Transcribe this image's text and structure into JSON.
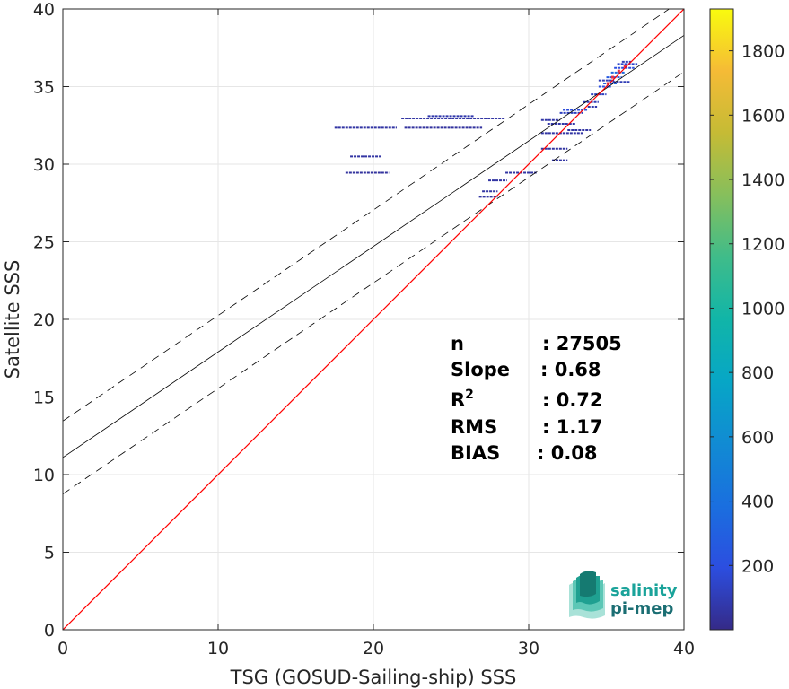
{
  "chart_data": {
    "type": "scatter",
    "subtype": "density-scatter",
    "xlabel": "TSG (GOSUD-Sailing-ship) SSS",
    "ylabel": "Satellite SSS",
    "xlim": [
      0,
      40
    ],
    "ylim": [
      0,
      40
    ],
    "xticks": [
      "0",
      "10",
      "20",
      "30",
      "40"
    ],
    "yticks": [
      "0",
      "5",
      "10",
      "15",
      "20",
      "25",
      "30",
      "35",
      "40"
    ],
    "grid": true,
    "colorbar": {
      "range": [
        0,
        1930
      ],
      "ticks": [
        "200",
        "400",
        "600",
        "800",
        "1000",
        "1200",
        "1400",
        "1600",
        "1800"
      ],
      "colormap": "parula"
    },
    "lines": {
      "identity": {
        "slope": 1,
        "intercept": 0,
        "color": "#ff0000"
      },
      "fit": {
        "slope": 0.68,
        "intercept": 11.1,
        "color": "#000000"
      },
      "fit_upper": {
        "slope": 0.68,
        "intercept": 13.45,
        "color": "#000000",
        "dash": true
      },
      "fit_lower": {
        "slope": 0.68,
        "intercept": 8.75,
        "color": "#000000",
        "dash": true
      }
    },
    "stats": [
      {
        "label": "n",
        "value": ": 27505"
      },
      {
        "label": "Slope",
        "value": ": 0.68"
      },
      {
        "label": "R",
        "sup": "2",
        "value": ": 0.72"
      },
      {
        "label": "RMS",
        "value": ": 1.17"
      },
      {
        "label": "BIAS",
        "value": ": 0.08"
      }
    ],
    "segments": [
      {
        "x0": 17.5,
        "x1": 21.5,
        "y": 32.35,
        "density": 60
      },
      {
        "x0": 22.0,
        "x1": 27.0,
        "y": 32.35,
        "density": 50
      },
      {
        "x0": 21.8,
        "x1": 28.5,
        "y": 32.95,
        "density": 60
      },
      {
        "x0": 23.5,
        "x1": 26.5,
        "y": 33.1,
        "density": 80
      },
      {
        "x0": 18.5,
        "x1": 20.5,
        "y": 30.5,
        "density": 60
      },
      {
        "x0": 18.2,
        "x1": 21.0,
        "y": 29.45,
        "density": 50
      },
      {
        "x0": 26.8,
        "x1": 28.0,
        "y": 27.9,
        "density": 60
      },
      {
        "x0": 27.0,
        "x1": 28.0,
        "y": 28.25,
        "density": 60
      },
      {
        "x0": 27.4,
        "x1": 28.6,
        "y": 28.95,
        "density": 60
      },
      {
        "x0": 28.5,
        "x1": 30.5,
        "y": 29.45,
        "density": 60
      },
      {
        "x0": 30.8,
        "x1": 32.5,
        "y": 31.0,
        "density": 60
      },
      {
        "x0": 31.5,
        "x1": 32.5,
        "y": 30.25,
        "density": 60
      },
      {
        "x0": 30.8,
        "x1": 33.5,
        "y": 32.0,
        "density": 60
      },
      {
        "x0": 32.5,
        "x1": 34.0,
        "y": 32.2,
        "density": 60
      },
      {
        "x0": 30.8,
        "x1": 32.0,
        "y": 32.85,
        "density": 70
      },
      {
        "x0": 31.2,
        "x1": 33.0,
        "y": 32.6,
        "density": 70
      },
      {
        "x0": 32.0,
        "x1": 33.5,
        "y": 33.3,
        "density": 120
      },
      {
        "x0": 32.2,
        "x1": 33.8,
        "y": 33.5,
        "density": 180
      },
      {
        "x0": 33.5,
        "x1": 34.5,
        "y": 34.0,
        "density": 100
      },
      {
        "x0": 34.0,
        "x1": 35.0,
        "y": 34.5,
        "density": 120
      },
      {
        "x0": 34.5,
        "x1": 35.3,
        "y": 35.0,
        "density": 200
      },
      {
        "x0": 35.0,
        "x1": 36.0,
        "y": 35.6,
        "density": 260
      },
      {
        "x0": 34.8,
        "x1": 35.7,
        "y": 35.2,
        "density": 300
      },
      {
        "x0": 35.3,
        "x1": 36.2,
        "y": 35.9,
        "density": 350
      },
      {
        "x0": 35.5,
        "x1": 36.8,
        "y": 36.2,
        "density": 200
      },
      {
        "x0": 35.7,
        "x1": 37.0,
        "y": 36.45,
        "density": 150
      },
      {
        "x0": 36.0,
        "x1": 36.6,
        "y": 36.6,
        "density": 100
      },
      {
        "x0": 34.5,
        "x1": 35.5,
        "y": 35.4,
        "density": 100
      },
      {
        "x0": 35.4,
        "x1": 36.5,
        "y": 35.3,
        "density": 100
      },
      {
        "x0": 33.8,
        "x1": 34.4,
        "y": 33.7,
        "density": 80
      }
    ],
    "red_points": [
      {
        "x": 35.4,
        "y": 35.6
      },
      {
        "x": 35.8,
        "y": 36.0
      },
      {
        "x": 36.2,
        "y": 36.3
      },
      {
        "x": 35.1,
        "y": 35.2
      }
    ]
  },
  "logo": {
    "line1": "salinity",
    "line2": "pi-mep",
    "color1": "#1aa39a",
    "color2": "#1b6e73"
  }
}
